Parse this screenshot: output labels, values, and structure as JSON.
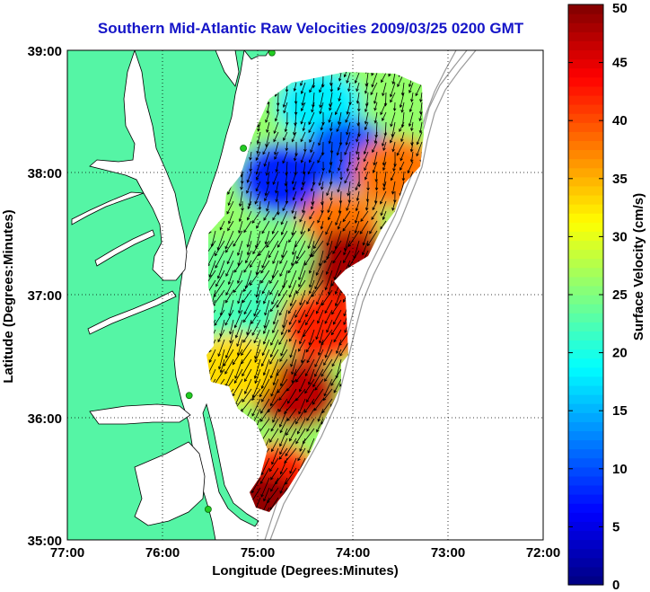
{
  "title": "Southern Mid-Atlantic Raw Velocities 2009/03/25 0200 GMT",
  "axes": {
    "xlabel": "Longitude (Degrees:Minutes)",
    "ylabel": "Latitude (Degrees:Minutes)",
    "x_ticks": [
      "77:00",
      "76:00",
      "75:00",
      "74:00",
      "73:00",
      "72:00"
    ],
    "y_ticks": [
      "39:00",
      "38:00",
      "37:00",
      "36:00",
      "35:00"
    ],
    "xlim": [
      -77,
      -72
    ],
    "ylim": [
      35,
      39
    ],
    "grid": "dotted"
  },
  "colorbar": {
    "label": "Surface Velocity (cm/s)",
    "ticks": [
      "0",
      "5",
      "10",
      "15",
      "20",
      "25",
      "30",
      "35",
      "40",
      "45",
      "50"
    ],
    "range": [
      0,
      50
    ],
    "colormap": "jet"
  },
  "colors": {
    "land": "#55f5a5",
    "land_edge": "#000000",
    "bathymetry": "#999999",
    "title": "#1515c8",
    "station_marker": "#22cc22",
    "arrow": "#000000"
  },
  "stations": [
    {
      "lon": -74.85,
      "lat": 38.98
    },
    {
      "lon": -75.15,
      "lat": 38.2
    },
    {
      "lon": -75.72,
      "lat": 36.18
    },
    {
      "lon": -75.52,
      "lat": 35.25
    }
  ],
  "chart_data": {
    "type": "heatmap",
    "description_units": "cm/s",
    "regions": [
      {
        "lon": -74.35,
        "lat": 38.55,
        "speed": 18
      },
      {
        "lon": -74.05,
        "lat": 38.15,
        "speed": 10
      },
      {
        "lon": -74.75,
        "lat": 37.95,
        "speed": 8
      },
      {
        "lon": -73.55,
        "lat": 38.0,
        "speed": 38
      },
      {
        "lon": -74.15,
        "lat": 37.55,
        "speed": 38
      },
      {
        "lon": -74.05,
        "lat": 37.25,
        "speed": 48
      },
      {
        "lon": -74.85,
        "lat": 37.35,
        "speed": 25
      },
      {
        "lon": -75.25,
        "lat": 36.9,
        "speed": 22
      },
      {
        "lon": -74.3,
        "lat": 36.75,
        "speed": 42
      },
      {
        "lon": -74.6,
        "lat": 36.2,
        "speed": 47
      },
      {
        "lon": -75.25,
        "lat": 36.4,
        "speed": 33
      },
      {
        "lon": -74.8,
        "lat": 35.5,
        "speed": 42
      },
      {
        "lon": -74.95,
        "lat": 35.25,
        "speed": 49
      },
      {
        "lon": -75.55,
        "lat": 37.15,
        "speed": 24
      }
    ]
  }
}
